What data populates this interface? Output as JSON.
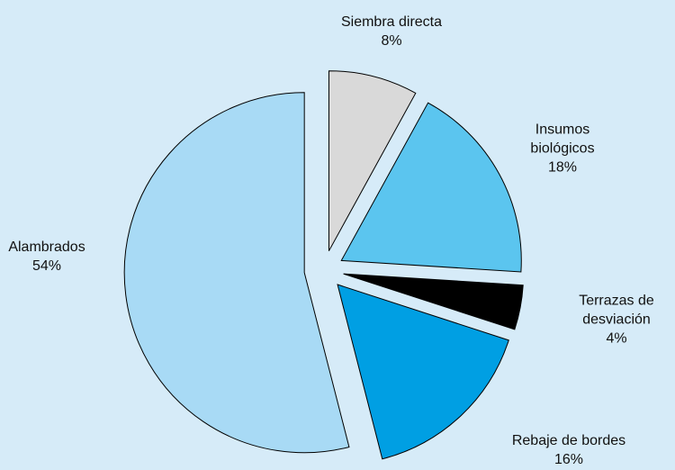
{
  "chart_data": {
    "type": "pie",
    "categories": [
      "Siembra directa",
      "Insumos biológicos",
      "Terrazas de desviación",
      "Rebaje de bordes",
      "Alambrados"
    ],
    "values": [
      8,
      18,
      4,
      16,
      54
    ],
    "value_labels": [
      "8%",
      "18%",
      "4%",
      "16%",
      "54%"
    ],
    "colors": [
      "#d9d9d9",
      "#5bc5ef",
      "#000000",
      "#009fe3",
      "#a8daf5"
    ],
    "exploded": true
  }
}
